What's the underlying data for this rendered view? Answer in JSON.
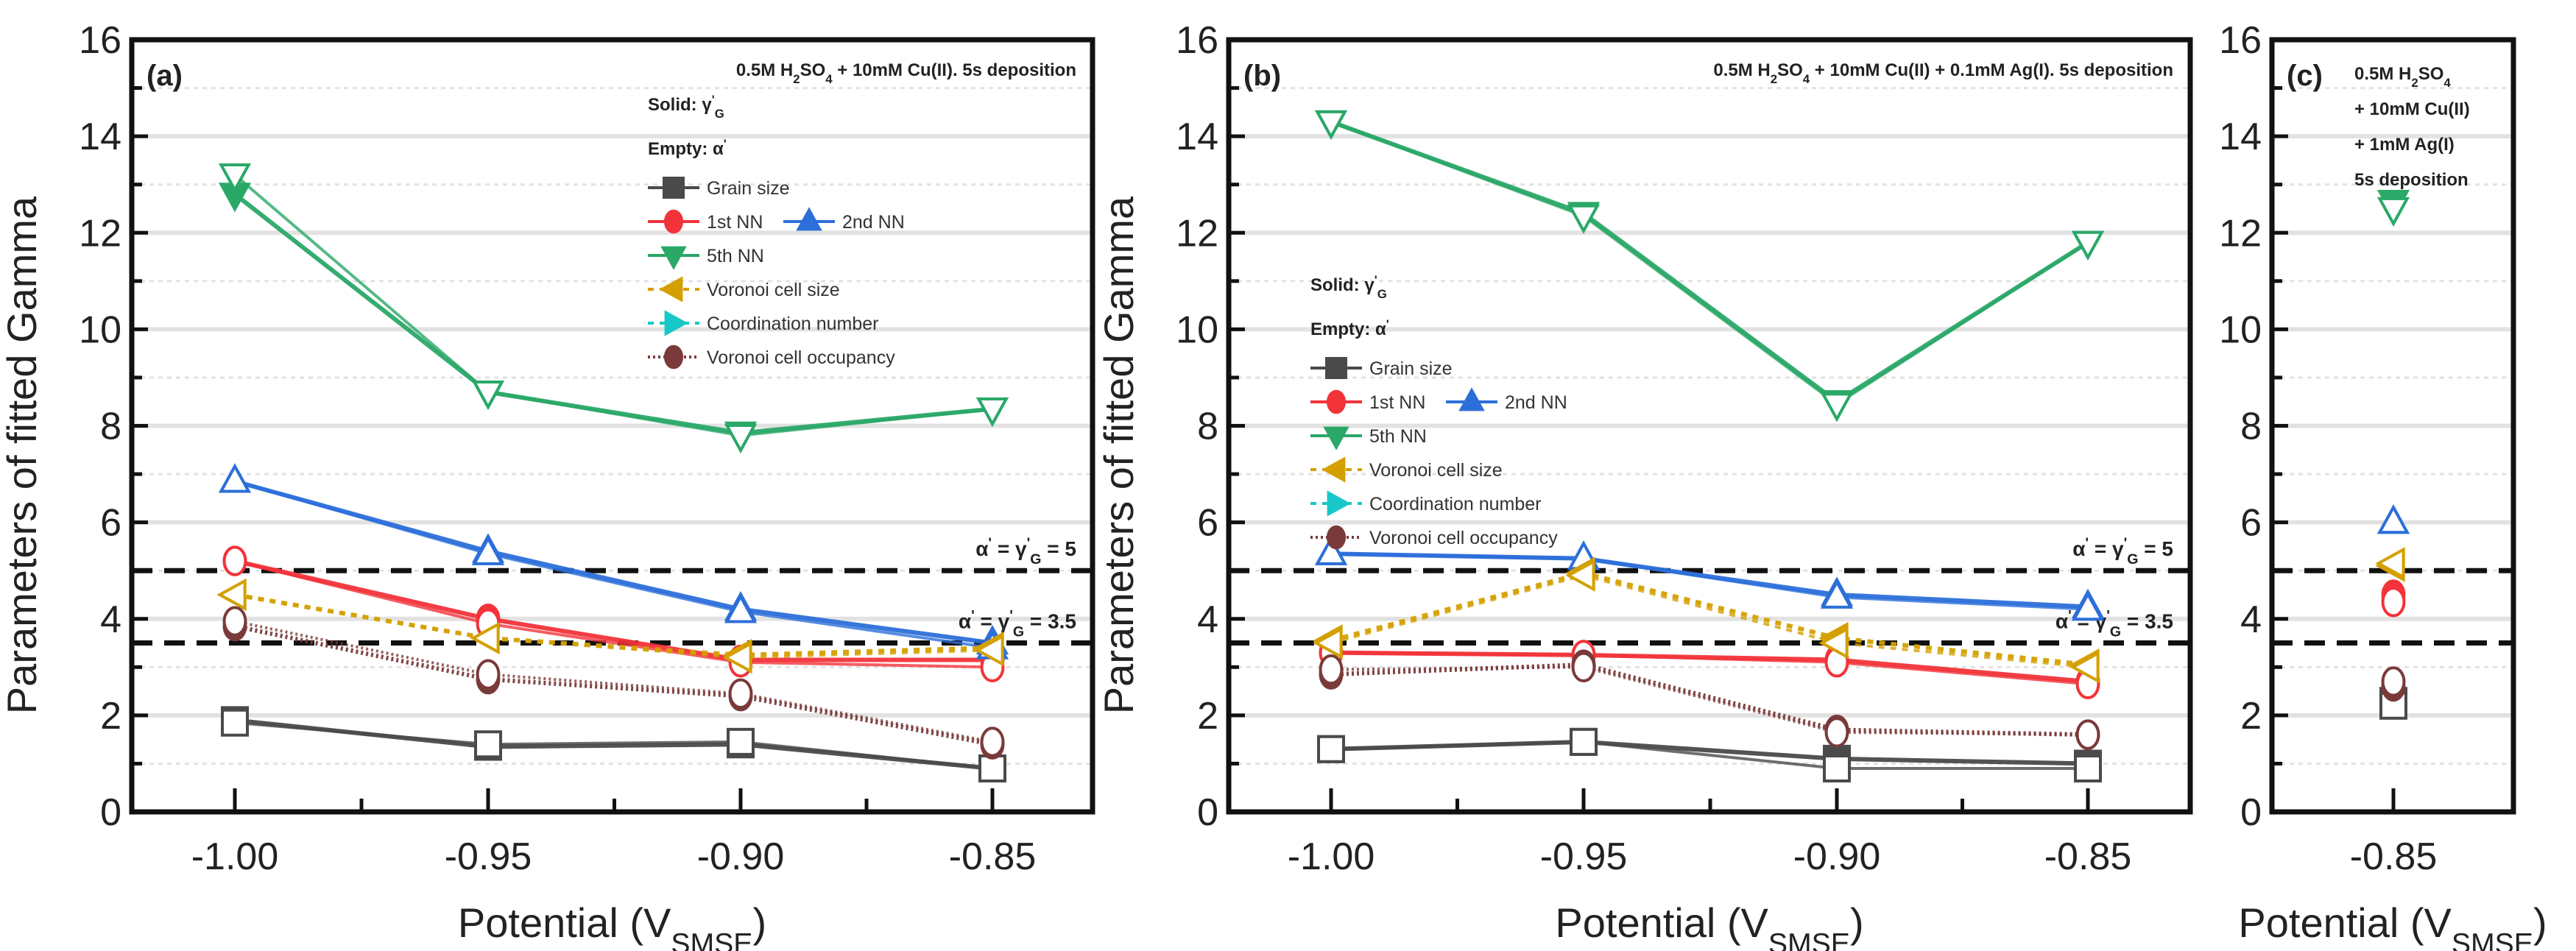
{
  "figure": {
    "ylabel": "Parameters of fitted Gamma",
    "xlabel_main": "Potential (V",
    "xlabel_sub": "SMSE",
    "xlabel_close": ")"
  },
  "chart_data": [
    {
      "panel": "(a)",
      "type": "line",
      "annotation": [
        "0.5M H2SO4 + 10mM Cu(II).  5s deposition"
      ],
      "legend_header": [
        "Solid: γ'G",
        "Empty: α'"
      ],
      "legend": [
        "Grain size",
        "1st NN",
        "2nd NN",
        "5th NN",
        "Voronoi cell size",
        "Coordination number",
        "Voronoi cell occupancy"
      ],
      "legend_placement": "top-right",
      "xlabel": "Potential (VSMSE)",
      "ylabel": "Parameters of fitted Gamma",
      "x": [
        -1.0,
        -0.95,
        -0.9,
        -0.85
      ],
      "xticks": [
        "-1.00",
        "-0.95",
        "-0.90",
        "-0.85"
      ],
      "xlim": [
        -1.02,
        -0.83
      ],
      "ylim": [
        0,
        16
      ],
      "yticks": [
        0,
        2,
        4,
        6,
        8,
        10,
        12,
        14,
        16
      ],
      "grid": true,
      "reference_lines": [
        {
          "y": 5,
          "label": "α' = γ'G = 5"
        },
        {
          "y": 3.5,
          "label": "α' = γ'G = 3.5"
        }
      ],
      "series": [
        {
          "name": "Grain size",
          "param": "gamma_G",
          "fill": "solid",
          "values": [
            1.9,
            1.35,
            1.4,
            0.9
          ]
        },
        {
          "name": "Grain size",
          "param": "alpha",
          "fill": "empty",
          "values": [
            1.85,
            1.4,
            1.45,
            0.9
          ]
        },
        {
          "name": "1st NN",
          "param": "gamma_G",
          "fill": "solid",
          "values": [
            5.2,
            4.0,
            3.15,
            3.15
          ]
        },
        {
          "name": "1st NN",
          "param": "alpha",
          "fill": "empty",
          "values": [
            5.2,
            3.9,
            3.1,
            3.0
          ]
        },
        {
          "name": "2nd NN",
          "param": "gamma_G",
          "fill": "solid",
          "values": [
            6.85,
            5.4,
            4.2,
            3.5
          ]
        },
        {
          "name": "2nd NN",
          "param": "alpha",
          "fill": "empty",
          "values": [
            6.85,
            5.35,
            4.15,
            3.4
          ]
        },
        {
          "name": "5th NN",
          "param": "gamma_G",
          "fill": "solid",
          "values": [
            12.8,
            8.7,
            7.85,
            8.35
          ]
        },
        {
          "name": "5th NN",
          "param": "alpha",
          "fill": "empty",
          "values": [
            13.2,
            8.7,
            7.8,
            8.35
          ]
        },
        {
          "name": "Voronoi cell size",
          "param": "gamma_G",
          "fill": "solid",
          "values": [
            4.5,
            3.6,
            3.25,
            3.4
          ]
        },
        {
          "name": "Voronoi cell size",
          "param": "alpha",
          "fill": "empty",
          "values": [
            4.5,
            3.6,
            3.2,
            3.35
          ]
        },
        {
          "name": "Voronoi cell occupancy",
          "param": "gamma_G",
          "fill": "solid",
          "values": [
            3.85,
            2.75,
            2.4,
            1.4
          ]
        },
        {
          "name": "Voronoi cell occupancy",
          "param": "alpha",
          "fill": "empty",
          "values": [
            3.95,
            2.85,
            2.45,
            1.45
          ]
        }
      ]
    },
    {
      "panel": "(b)",
      "type": "line",
      "annotation": [
        "0.5M H2SO4 + 10mM Cu(II) + 0.1mM Ag(I).  5s deposition"
      ],
      "legend_header": [
        "Solid: γ'G",
        "Empty: α'"
      ],
      "legend": [
        "Grain size",
        "1st NN",
        "2nd NN",
        "5th NN",
        "Voronoi cell size",
        "Coordination number",
        "Voronoi cell occupancy"
      ],
      "legend_placement": "center-left",
      "xlabel": "Potential (VSMSE)",
      "ylabel": "Parameters of fitted Gamma",
      "x": [
        -1.0,
        -0.95,
        -0.9,
        -0.85
      ],
      "xticks": [
        "-1.00",
        "-0.95",
        "-0.90",
        "-0.85"
      ],
      "xlim": [
        -1.04,
        -0.83
      ],
      "ylim": [
        0,
        16
      ],
      "yticks": [
        0,
        2,
        4,
        6,
        8,
        10,
        12,
        14,
        16
      ],
      "grid": true,
      "reference_lines": [
        {
          "y": 5,
          "label": "α' = γ'G = 5"
        },
        {
          "y": 3.5,
          "label": "α' = γ'G = 3.5"
        }
      ],
      "series": [
        {
          "name": "Grain size",
          "param": "gamma_G",
          "fill": "solid",
          "values": [
            1.3,
            1.45,
            1.1,
            1.0
          ]
        },
        {
          "name": "Grain size",
          "param": "alpha",
          "fill": "empty",
          "values": [
            1.3,
            1.45,
            0.9,
            0.9
          ]
        },
        {
          "name": "1st NN",
          "param": "gamma_G",
          "fill": "solid",
          "values": [
            3.3,
            3.25,
            3.15,
            2.7
          ]
        },
        {
          "name": "1st NN",
          "param": "alpha",
          "fill": "empty",
          "values": [
            3.3,
            3.25,
            3.1,
            2.65
          ]
        },
        {
          "name": "2nd NN",
          "param": "gamma_G",
          "fill": "solid",
          "values": [
            5.35,
            5.25,
            4.5,
            4.25
          ]
        },
        {
          "name": "2nd NN",
          "param": "alpha",
          "fill": "empty",
          "values": [
            5.35,
            5.25,
            4.45,
            4.2
          ]
        },
        {
          "name": "5th NN",
          "param": "gamma_G",
          "fill": "solid",
          "values": [
            14.3,
            12.4,
            8.5,
            11.8
          ]
        },
        {
          "name": "5th NN",
          "param": "alpha",
          "fill": "empty",
          "values": [
            14.3,
            12.35,
            8.45,
            11.8
          ]
        },
        {
          "name": "Voronoi cell size",
          "param": "gamma_G",
          "fill": "solid",
          "values": [
            3.55,
            4.95,
            3.6,
            3.05
          ]
        },
        {
          "name": "Voronoi cell size",
          "param": "alpha",
          "fill": "empty",
          "values": [
            3.5,
            4.9,
            3.5,
            3.0
          ]
        },
        {
          "name": "Voronoi cell occupancy",
          "param": "gamma_G",
          "fill": "solid",
          "values": [
            2.85,
            3.05,
            1.7,
            1.6
          ]
        },
        {
          "name": "Voronoi cell occupancy",
          "param": "alpha",
          "fill": "empty",
          "values": [
            2.95,
            3.0,
            1.65,
            1.6
          ]
        }
      ]
    },
    {
      "panel": "(c)",
      "type": "scatter",
      "annotation": [
        "0.5M H2SO4",
        "+ 10mM Cu(II)",
        "+ 1mM Ag(I)",
        "5s deposition"
      ],
      "xlabel": "Potential (VSMSE)",
      "x": [
        -0.85
      ],
      "xticks": [
        "-0.85"
      ],
      "xlim": [
        -0.87,
        -0.83
      ],
      "ylim": [
        0,
        16
      ],
      "yticks": [
        0,
        2,
        4,
        6,
        8,
        10,
        12,
        14,
        16
      ],
      "grid": true,
      "reference_lines": [
        {
          "y": 5,
          "label": ""
        },
        {
          "y": 3.5,
          "label": ""
        }
      ],
      "series": [
        {
          "name": "Grain size",
          "param": "gamma_G",
          "fill": "solid",
          "values": [
            2.3
          ]
        },
        {
          "name": "Grain size",
          "param": "alpha",
          "fill": "empty",
          "values": [
            2.2
          ]
        },
        {
          "name": "1st NN",
          "param": "gamma_G",
          "fill": "solid",
          "values": [
            4.5
          ]
        },
        {
          "name": "1st NN",
          "param": "alpha",
          "fill": "empty",
          "values": [
            4.35
          ]
        },
        {
          "name": "2nd NN",
          "param": "gamma_G",
          "fill": "solid",
          "values": [
            6.0
          ]
        },
        {
          "name": "2nd NN",
          "param": "alpha",
          "fill": "empty",
          "values": [
            6.0
          ]
        },
        {
          "name": "5th NN",
          "param": "gamma_G",
          "fill": "solid",
          "values": [
            12.65
          ]
        },
        {
          "name": "5th NN",
          "param": "alpha",
          "fill": "empty",
          "values": [
            12.5
          ]
        },
        {
          "name": "Voronoi cell size",
          "param": "gamma_G",
          "fill": "solid",
          "values": [
            5.1
          ]
        },
        {
          "name": "Voronoi cell size",
          "param": "alpha",
          "fill": "empty",
          "values": [
            5.15
          ]
        },
        {
          "name": "Voronoi cell occupancy",
          "param": "gamma_G",
          "fill": "solid",
          "values": [
            2.6
          ]
        },
        {
          "name": "Voronoi cell occupancy",
          "param": "alpha",
          "fill": "empty",
          "values": [
            2.7
          ]
        }
      ]
    }
  ],
  "styles": {
    "Grain size": {
      "color": "#4a4a4a",
      "marker": "square",
      "dash": ""
    },
    "1st NN": {
      "color": "#f2333a",
      "marker": "circle",
      "dash": ""
    },
    "2nd NN": {
      "color": "#2c6fd9",
      "marker": "triangle-up",
      "dash": ""
    },
    "5th NN": {
      "color": "#2aa868",
      "marker": "triangle-down",
      "dash": ""
    },
    "Voronoi cell size": {
      "color": "#d4a000",
      "marker": "triangle-left",
      "dash": "8,8"
    },
    "Coordination number": {
      "color": "#18c8c8",
      "marker": "triangle-right",
      "dash": "8,8"
    },
    "Voronoi cell occupancy": {
      "color": "#7a3a3a",
      "marker": "circle",
      "dash": "3,4"
    },
    "reference_line": "#111111",
    "grid": "#e2e2e2",
    "axis": "#111111"
  }
}
